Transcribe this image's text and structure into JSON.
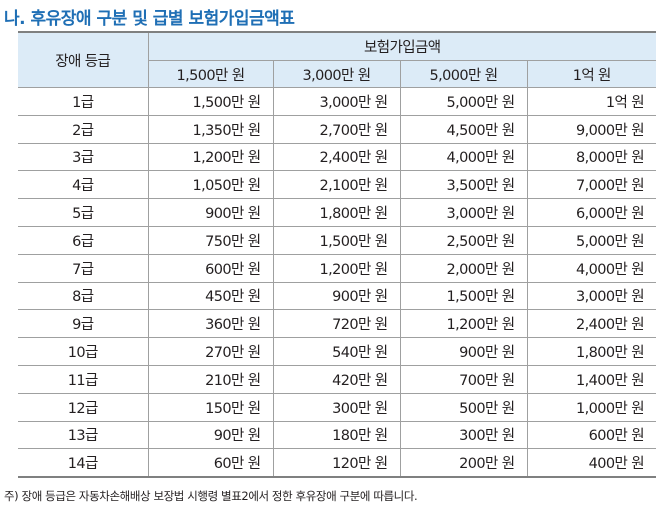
{
  "title": "나. 후유장애 구분 및 급별 보험가입금액표",
  "table": {
    "grade_header": "장애 등급",
    "group_header": "보험가입금액",
    "columns": [
      "1,500만 원",
      "3,000만 원",
      "5,000만 원",
      "1억 원"
    ],
    "rows": [
      {
        "grade": "1급",
        "values": [
          "1,500만 원",
          "3,000만 원",
          "5,000만 원",
          "1억 원"
        ]
      },
      {
        "grade": "2급",
        "values": [
          "1,350만 원",
          "2,700만 원",
          "4,500만 원",
          "9,000만 원"
        ]
      },
      {
        "grade": "3급",
        "values": [
          "1,200만 원",
          "2,400만 원",
          "4,000만 원",
          "8,000만 원"
        ]
      },
      {
        "grade": "4급",
        "values": [
          "1,050만 원",
          "2,100만 원",
          "3,500만 원",
          "7,000만 원"
        ]
      },
      {
        "grade": "5급",
        "values": [
          "900만 원",
          "1,800만 원",
          "3,000만 원",
          "6,000만 원"
        ]
      },
      {
        "grade": "6급",
        "values": [
          "750만 원",
          "1,500만 원",
          "2,500만 원",
          "5,000만 원"
        ]
      },
      {
        "grade": "7급",
        "values": [
          "600만 원",
          "1,200만 원",
          "2,000만 원",
          "4,000만 원"
        ]
      },
      {
        "grade": "8급",
        "values": [
          "450만 원",
          "900만 원",
          "1,500만 원",
          "3,000만 원"
        ]
      },
      {
        "grade": "9급",
        "values": [
          "360만 원",
          "720만 원",
          "1,200만 원",
          "2,400만 원"
        ]
      },
      {
        "grade": "10급",
        "values": [
          "270만 원",
          "540만 원",
          "900만 원",
          "1,800만 원"
        ]
      },
      {
        "grade": "11급",
        "values": [
          "210만 원",
          "420만 원",
          "700만 원",
          "1,400만 원"
        ]
      },
      {
        "grade": "12급",
        "values": [
          "150만 원",
          "300만 원",
          "500만 원",
          "1,000만 원"
        ]
      },
      {
        "grade": "13급",
        "values": [
          "90만 원",
          "180만 원",
          "300만 원",
          "600만 원"
        ]
      },
      {
        "grade": "14급",
        "values": [
          "60만 원",
          "120만 원",
          "200만 원",
          "400만 원"
        ]
      }
    ]
  },
  "note": "주) 장애 등급은 자동차손해배상 보장법 시행령 별표2에서 정한 후유장애 구분에 따릅니다.",
  "colors": {
    "title": "#1f6fb5",
    "header_bg": "#dcebf7",
    "border": "#9fa0a0"
  }
}
